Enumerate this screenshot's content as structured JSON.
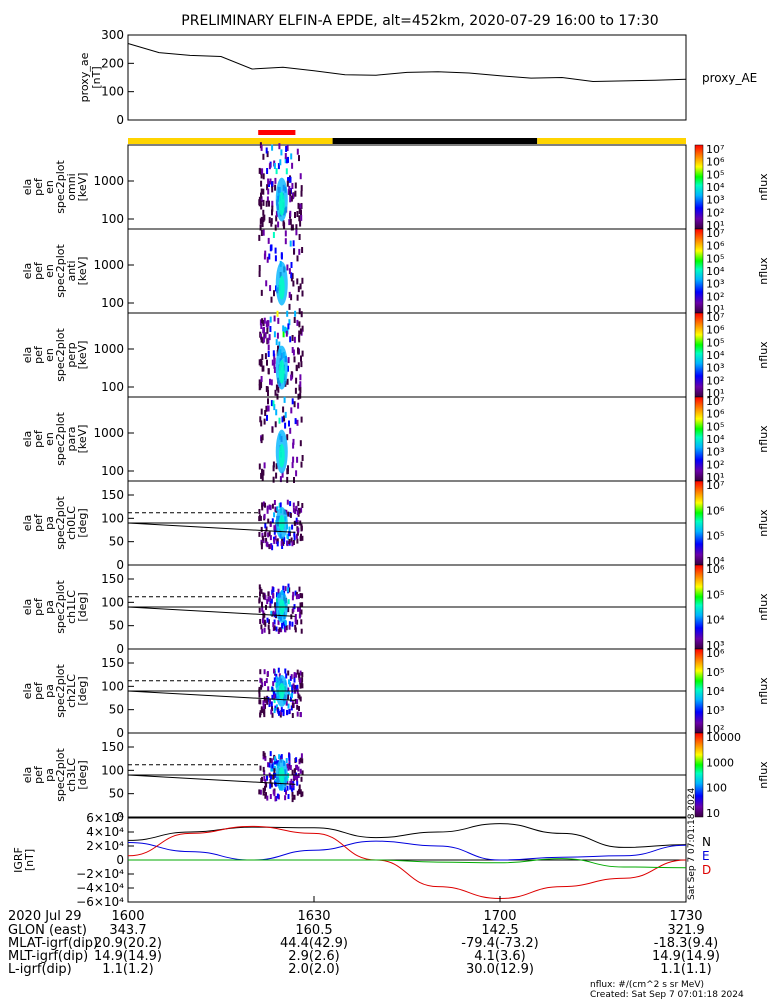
{
  "title": "PRELIMINARY ELFIN-A EPDE, alt=452km, 2020-07-29 16:00 to 17:30",
  "chart_data": [
    {
      "type": "line",
      "panel": "proxy_ae",
      "ylabel": [
        "proxy_ae",
        "[nT]"
      ],
      "legend": "proxy_AE",
      "ylim": [
        0,
        300
      ],
      "yticks": [
        "300",
        "200",
        "100",
        "0"
      ],
      "x_minutes": [
        0,
        5,
        10,
        15,
        20,
        25,
        30,
        35,
        40,
        45,
        50,
        55,
        60,
        65,
        70,
        75,
        80,
        85,
        90
      ],
      "values": [
        270,
        238,
        228,
        224,
        180,
        186,
        174,
        160,
        158,
        168,
        170,
        166,
        156,
        148,
        150,
        136,
        138,
        140,
        144
      ]
    },
    {
      "type": "bar",
      "panel": "status_bar",
      "segments": [
        {
          "start_min": 0,
          "end_min": 33,
          "color": "#ffd400"
        },
        {
          "start_min": 33,
          "end_min": 66,
          "color": "#000000"
        },
        {
          "start_min": 66,
          "end_min": 90,
          "color": "#ffd400"
        }
      ],
      "highlight": {
        "start_min": 21,
        "end_min": 27,
        "color": "#ff0000"
      }
    },
    {
      "type": "heatmap",
      "panel": "en-omni",
      "ylabel": [
        "ela",
        "pef",
        "en",
        "spec2plot",
        "omni",
        "[keV]"
      ],
      "yscale": "log",
      "yticks": [
        "1000",
        "100"
      ],
      "colorbar": {
        "label": "nflux",
        "ticks": [
          "10⁷",
          "10⁶",
          "10⁵",
          "10⁴",
          "10³",
          "10²",
          "10¹"
        ]
      }
    },
    {
      "type": "heatmap",
      "panel": "en-anti",
      "ylabel": [
        "ela",
        "pef",
        "en",
        "spec2plot",
        "anti",
        "[keV]"
      ],
      "yscale": "log",
      "yticks": [
        "1000",
        "100"
      ],
      "colorbar": {
        "label": "nflux",
        "ticks": [
          "10⁷",
          "10⁶",
          "10⁵",
          "10⁴",
          "10³",
          "10²",
          "10¹"
        ]
      }
    },
    {
      "type": "heatmap",
      "panel": "en-perp",
      "ylabel": [
        "ela",
        "pef",
        "en",
        "spec2plot",
        "perp",
        "[keV]"
      ],
      "yscale": "log",
      "yticks": [
        "1000",
        "100"
      ],
      "colorbar": {
        "label": "nflux",
        "ticks": [
          "10⁷",
          "10⁶",
          "10⁵",
          "10⁴",
          "10³",
          "10²",
          "10¹"
        ]
      }
    },
    {
      "type": "heatmap",
      "panel": "en-para",
      "ylabel": [
        "ela",
        "pef",
        "en",
        "spec2plot",
        "para",
        "[keV]"
      ],
      "yscale": "log",
      "yticks": [
        "1000",
        "100"
      ],
      "colorbar": {
        "label": "nflux",
        "ticks": [
          "10⁷",
          "10⁶",
          "10⁵",
          "10⁴",
          "10³",
          "10²",
          "10¹"
        ]
      }
    },
    {
      "type": "heatmap",
      "panel": "pa-ch0LC",
      "ylabel": [
        "ela",
        "pef",
        "pa",
        "spec2plot",
        "ch0LC",
        "[deg]"
      ],
      "ylim": [
        0,
        180
      ],
      "yticks": [
        "150",
        "100",
        "50",
        "0"
      ],
      "colorbar": {
        "label": "nflux",
        "ticks": [
          "10⁷",
          "10⁶",
          "10⁵",
          "10⁴"
        ]
      }
    },
    {
      "type": "heatmap",
      "panel": "pa-ch1LC",
      "ylabel": [
        "ela",
        "pef",
        "pa",
        "spec2plot",
        "ch1LC",
        "[deg]"
      ],
      "ylim": [
        0,
        180
      ],
      "yticks": [
        "150",
        "100",
        "50",
        "0"
      ],
      "colorbar": {
        "label": "nflux",
        "ticks": [
          "10⁶",
          "10⁵",
          "10⁴",
          "10³"
        ]
      }
    },
    {
      "type": "heatmap",
      "panel": "pa-ch2LC",
      "ylabel": [
        "ela",
        "pef",
        "pa",
        "spec2plot",
        "ch2LC",
        "[deg]"
      ],
      "ylim": [
        0,
        180
      ],
      "yticks": [
        "150",
        "100",
        "50",
        "0"
      ],
      "colorbar": {
        "label": "nflux",
        "ticks": [
          "10⁶",
          "10⁵",
          "10⁴",
          "10³",
          "10²"
        ]
      }
    },
    {
      "type": "heatmap",
      "panel": "pa-ch3LC",
      "ylabel": [
        "ela",
        "pef",
        "pa",
        "spec2plot",
        "ch3LC",
        "[deg]"
      ],
      "ylim": [
        0,
        180
      ],
      "yticks": [
        "150",
        "100",
        "50",
        "0"
      ],
      "colorbar": {
        "label": "nflux",
        "ticks": [
          "10000",
          "1000",
          "100",
          "10"
        ]
      }
    },
    {
      "type": "line",
      "panel": "igrf",
      "ylabel": [
        "IGRF",
        "[nT]"
      ],
      "ylim": [
        -60000,
        60000
      ],
      "yticks": [
        "6×10⁴",
        "4×10⁴",
        "2×10⁴",
        "0",
        "−2×10⁴",
        "−4×10⁴",
        "−6×10⁴"
      ],
      "x_minutes": [
        0,
        10,
        20,
        30,
        40,
        50,
        60,
        70,
        80,
        90
      ],
      "series": [
        {
          "name": "N",
          "color": "#000000",
          "values": [
            28000,
            40000,
            47000,
            46000,
            32000,
            40000,
            52000,
            38000,
            18000,
            22000
          ]
        },
        {
          "name": "E",
          "color": "#0000dd",
          "values": [
            25000,
            12000,
            0,
            14000,
            27000,
            20000,
            0,
            4000,
            6000,
            21000
          ]
        },
        {
          "name": "D",
          "color": "#dd0000",
          "values": [
            6000,
            38000,
            48000,
            38000,
            0,
            -38000,
            -55000,
            -38000,
            -26000,
            0
          ]
        },
        {
          "name": "",
          "color": "#00aa00",
          "values": [
            0,
            0,
            0,
            0,
            0,
            -3000,
            -4000,
            2000,
            -10000,
            -11000
          ]
        }
      ],
      "legend": [
        "N",
        "E",
        "D"
      ]
    }
  ],
  "xaxis": {
    "date": "2020 Jul 29",
    "ticks": [
      "1600",
      "1630",
      "1700",
      "1730"
    ],
    "rows": [
      {
        "label": "GLON (east)",
        "values": [
          "343.7",
          "160.5",
          "142.5",
          "321.9"
        ]
      },
      {
        "label": "MLAT-igrf(dip)",
        "values": [
          "20.9(20.2)",
          "44.4(42.9)",
          "-79.4(-73.2)",
          "-18.3(9.4)"
        ]
      },
      {
        "label": "MLT-igrf(dip)",
        "values": [
          "14.9(14.9)",
          "2.9(2.6)",
          "4.1(3.6)",
          "14.9(14.9)"
        ]
      },
      {
        "label": "L-igrf(dip)",
        "values": [
          "1.1(1.2)",
          "2.0(2.0)",
          "30.0(12.9)",
          "1.1(1.1)"
        ]
      }
    ]
  },
  "footer": {
    "units": "nflux: #/(cm^2 s sr MeV)",
    "created": "Created: Sat Sep  7 07:01:18 2024",
    "side_note": "Sat Sep  7 07:01:18 2024"
  }
}
